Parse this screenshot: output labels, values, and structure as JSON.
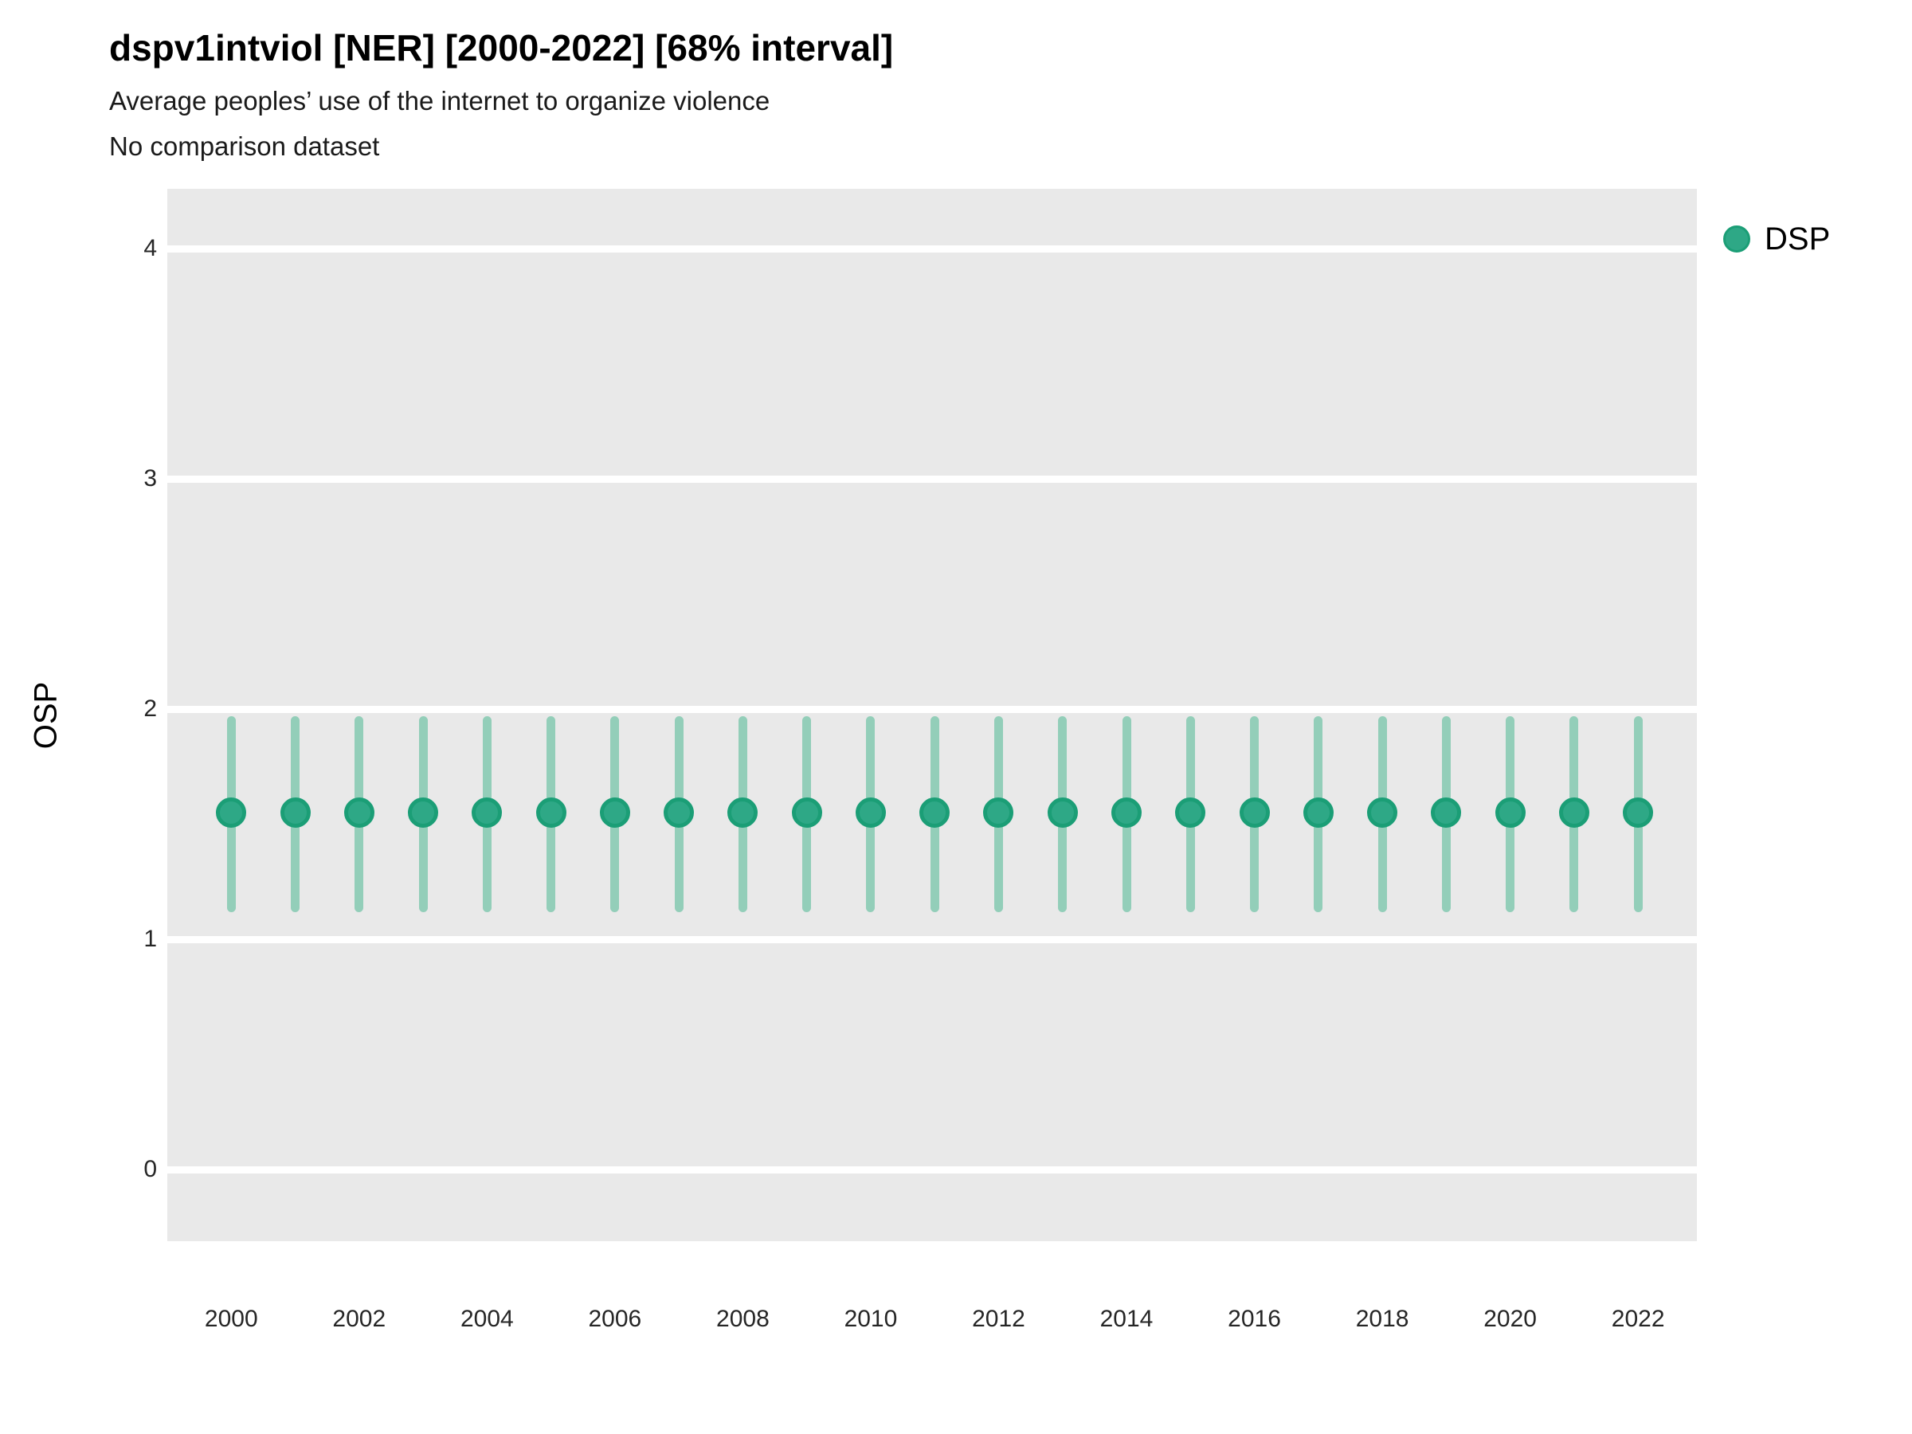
{
  "colors": {
    "panel_bg": "#E9E9E9",
    "gridline": "#FFFFFF",
    "point_fill": "#2EA886",
    "point_stroke": "#1B9E76",
    "interval": "#93CEB9",
    "text": "#000000",
    "tick_text": "#262626"
  },
  "chart_data": {
    "type": "scatter",
    "title": "dspv1intviol [NER] [2000-2022] [68% interval]",
    "subtitle": [
      "Average peoples’ use of the internet to organize violence",
      "No comparison dataset"
    ],
    "xlabel": "",
    "ylabel": "OSP",
    "grid": "horizontal-only",
    "legend": {
      "position": "right",
      "items": [
        {
          "label": "DSP"
        }
      ]
    },
    "x": [
      2000,
      2001,
      2002,
      2003,
      2004,
      2005,
      2006,
      2007,
      2008,
      2009,
      2010,
      2011,
      2012,
      2013,
      2014,
      2015,
      2016,
      2017,
      2018,
      2019,
      2020,
      2021,
      2022
    ],
    "series": [
      {
        "name": "DSP",
        "points": [
          1.55,
          1.55,
          1.55,
          1.55,
          1.55,
          1.55,
          1.55,
          1.55,
          1.55,
          1.55,
          1.55,
          1.55,
          1.55,
          1.55,
          1.55,
          1.55,
          1.55,
          1.55,
          1.55,
          1.55,
          1.55,
          1.55,
          1.55
        ],
        "lower": [
          1.12,
          1.12,
          1.12,
          1.12,
          1.12,
          1.12,
          1.12,
          1.12,
          1.12,
          1.12,
          1.12,
          1.12,
          1.12,
          1.12,
          1.12,
          1.12,
          1.12,
          1.12,
          1.12,
          1.12,
          1.12,
          1.12,
          1.12
        ],
        "upper": [
          1.97,
          1.97,
          1.97,
          1.97,
          1.97,
          1.97,
          1.97,
          1.97,
          1.97,
          1.97,
          1.97,
          1.97,
          1.97,
          1.97,
          1.97,
          1.97,
          1.97,
          1.97,
          1.97,
          1.97,
          1.97,
          1.97,
          1.97
        ],
        "interval_level": "68%"
      }
    ],
    "yticks": [
      0,
      1,
      2,
      3,
      4
    ],
    "xticks": [
      2000,
      2002,
      2004,
      2006,
      2008,
      2010,
      2012,
      2014,
      2016,
      2018,
      2020,
      2022
    ],
    "ylim": [
      -0.31,
      4.26
    ],
    "xlim": [
      1999.0,
      2022.92
    ]
  }
}
